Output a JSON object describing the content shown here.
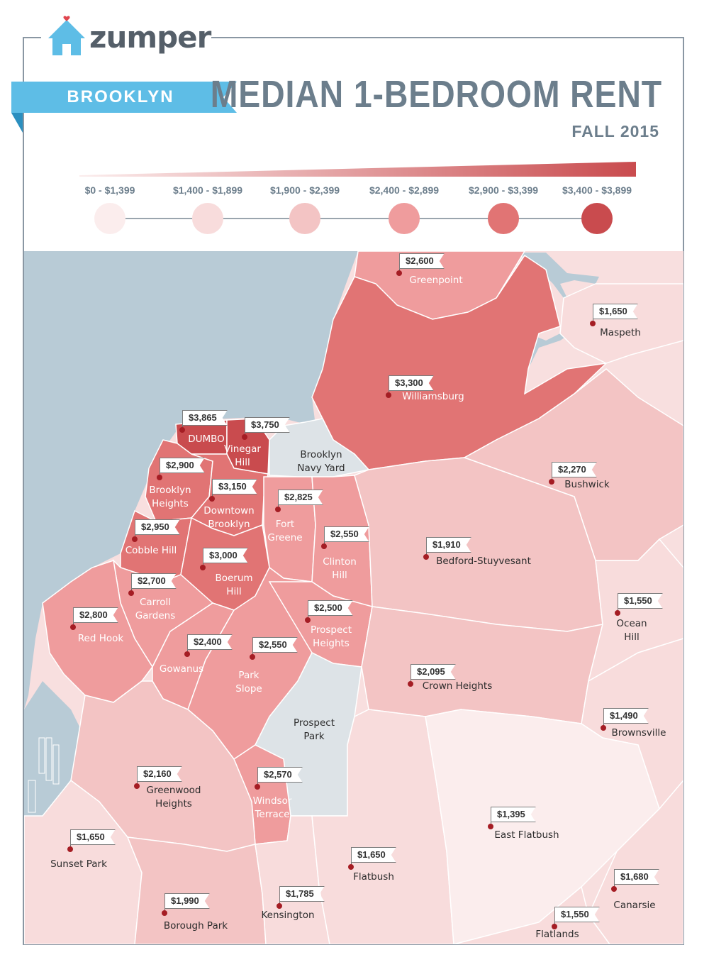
{
  "brand": {
    "name": "zumper",
    "accent": "#5ebde6"
  },
  "header": {
    "borough": "BROOKLYN",
    "title": "MEDIAN 1-BEDROOM RENT",
    "period": "FALL 2015"
  },
  "legend": {
    "bins": [
      {
        "label": "$0 - $1,399",
        "color": "#fbeded"
      },
      {
        "label": "$1,400 - $1,899",
        "color": "#f8dcdc"
      },
      {
        "label": "$1,900 - $2,399",
        "color": "#f3c4c4"
      },
      {
        "label": "$2,400 - $2,899",
        "color": "#ef9c9d"
      },
      {
        "label": "$2,900 - $3,399",
        "color": "#e17474"
      },
      {
        "label": "$3,400 - $3,899",
        "color": "#c94b4e"
      }
    ]
  },
  "neighborhoods": [
    {
      "name": "Greenpoint",
      "rent": "$2,600"
    },
    {
      "name": "Maspeth",
      "rent": "$1,650"
    },
    {
      "name": "Williamsburg",
      "rent": "$3,300"
    },
    {
      "name": "DUMBO",
      "rent": "$3,865"
    },
    {
      "name": "Vinegar\nHill",
      "rent": "$3,750"
    },
    {
      "name": "Brooklyn\nNavy Yard",
      "rent": ""
    },
    {
      "name": "Bushwick",
      "rent": "$2,270"
    },
    {
      "name": "Brooklyn\nHeights",
      "rent": "$2,900"
    },
    {
      "name": "Downtown\nBrooklyn",
      "rent": "$3,150"
    },
    {
      "name": "Fort\nGreene",
      "rent": "$2,825"
    },
    {
      "name": "Clinton\nHill",
      "rent": "$2,550"
    },
    {
      "name": "Bedford-Stuyvesant",
      "rent": "$1,910"
    },
    {
      "name": "Cobble Hill",
      "rent": "$2,950"
    },
    {
      "name": "Boerum\nHill",
      "rent": "$3,000"
    },
    {
      "name": "Carroll\nGardens",
      "rent": "$2,700"
    },
    {
      "name": "Ocean\nHill",
      "rent": "$1,550"
    },
    {
      "name": "Red Hook",
      "rent": "$2,800"
    },
    {
      "name": "Prospect\nHeights",
      "rent": "$2,500"
    },
    {
      "name": "Gowanus",
      "rent": "$2,400"
    },
    {
      "name": "Park\nSlope",
      "rent": "$2,550"
    },
    {
      "name": "Crown Heights",
      "rent": "$2,095"
    },
    {
      "name": "Prospect\nPark",
      "rent": ""
    },
    {
      "name": "Brownsville",
      "rent": "$1,490"
    },
    {
      "name": "Greenwood\nHeights",
      "rent": "$2,160"
    },
    {
      "name": "Windsor\nTerrace",
      "rent": "$2,570"
    },
    {
      "name": "East Flatbush",
      "rent": "$1,395"
    },
    {
      "name": "Sunset Park",
      "rent": "$1,650"
    },
    {
      "name": "Flatbush",
      "rent": "$1,650"
    },
    {
      "name": "Canarsie",
      "rent": "$1,680"
    },
    {
      "name": "Borough Park",
      "rent": "$1,990"
    },
    {
      "name": "Kensington",
      "rent": "$1,785"
    },
    {
      "name": "Flatlands",
      "rent": "$1,550"
    }
  ]
}
